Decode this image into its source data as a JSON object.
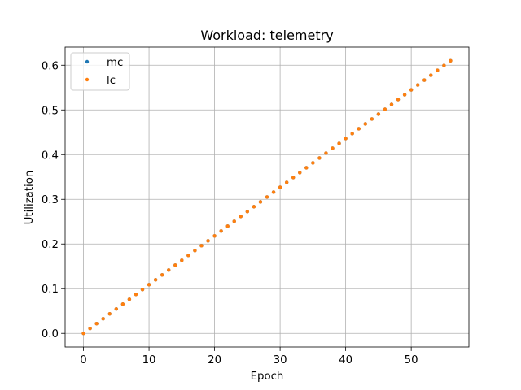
{
  "chart_data": {
    "type": "scatter",
    "title": "Workload: telemetry",
    "xlabel": "Epoch",
    "ylabel": "Utilization",
    "xlim": [
      -2.8,
      58.8
    ],
    "ylim": [
      -0.0305,
      0.6405
    ],
    "xticks": [
      0,
      10,
      20,
      30,
      40,
      50
    ],
    "yticks": [
      0.0,
      0.1,
      0.2,
      0.3,
      0.4,
      0.5,
      0.6
    ],
    "grid": true,
    "legend_position": "top-left",
    "series": [
      {
        "name": "mc",
        "color": "#1f77b4",
        "x": [
          0,
          1,
          2,
          3,
          4,
          5,
          6,
          7,
          8,
          9,
          10,
          11,
          12,
          13,
          14,
          15,
          16,
          17,
          18,
          19,
          20,
          21,
          22,
          23,
          24,
          25,
          26,
          27,
          28,
          29,
          30,
          31,
          32,
          33,
          34,
          35,
          36,
          37,
          38,
          39,
          40,
          41,
          42,
          43,
          44,
          45,
          46,
          47,
          48,
          49,
          50,
          51,
          52,
          53,
          54,
          55,
          56
        ],
        "y": [
          0.0,
          0.0109,
          0.0218,
          0.0327,
          0.0436,
          0.0545,
          0.0654,
          0.0763,
          0.0872,
          0.0981,
          0.109,
          0.1199,
          0.1308,
          0.1417,
          0.1526,
          0.1635,
          0.1744,
          0.1853,
          0.1962,
          0.2071,
          0.218,
          0.2289,
          0.2398,
          0.2507,
          0.2616,
          0.2725,
          0.2834,
          0.2943,
          0.3052,
          0.3161,
          0.327,
          0.3379,
          0.3488,
          0.3597,
          0.3706,
          0.3815,
          0.3924,
          0.4033,
          0.4142,
          0.4251,
          0.436,
          0.4469,
          0.4578,
          0.4687,
          0.4796,
          0.4905,
          0.5014,
          0.5123,
          0.5232,
          0.5341,
          0.545,
          0.5559,
          0.5668,
          0.5777,
          0.5886,
          0.5995,
          0.61
        ]
      },
      {
        "name": "lc",
        "color": "#ff7f0e",
        "x": [
          0,
          1,
          2,
          3,
          4,
          5,
          6,
          7,
          8,
          9,
          10,
          11,
          12,
          13,
          14,
          15,
          16,
          17,
          18,
          19,
          20,
          21,
          22,
          23,
          24,
          25,
          26,
          27,
          28,
          29,
          30,
          31,
          32,
          33,
          34,
          35,
          36,
          37,
          38,
          39,
          40,
          41,
          42,
          43,
          44,
          45,
          46,
          47,
          48,
          49,
          50,
          51,
          52,
          53,
          54,
          55,
          56
        ],
        "y": [
          0.0,
          0.0109,
          0.0218,
          0.0327,
          0.0436,
          0.0545,
          0.0654,
          0.0763,
          0.0872,
          0.0981,
          0.109,
          0.1199,
          0.1308,
          0.1417,
          0.1526,
          0.1635,
          0.1744,
          0.1853,
          0.1962,
          0.2071,
          0.218,
          0.2289,
          0.2398,
          0.2507,
          0.2616,
          0.2725,
          0.2834,
          0.2943,
          0.3052,
          0.3161,
          0.327,
          0.3379,
          0.3488,
          0.3597,
          0.3706,
          0.3815,
          0.3924,
          0.4033,
          0.4142,
          0.4251,
          0.436,
          0.4469,
          0.4578,
          0.4687,
          0.4796,
          0.4905,
          0.5014,
          0.5123,
          0.5232,
          0.5341,
          0.545,
          0.5559,
          0.5668,
          0.5777,
          0.5886,
          0.5995,
          0.61
        ]
      }
    ]
  }
}
